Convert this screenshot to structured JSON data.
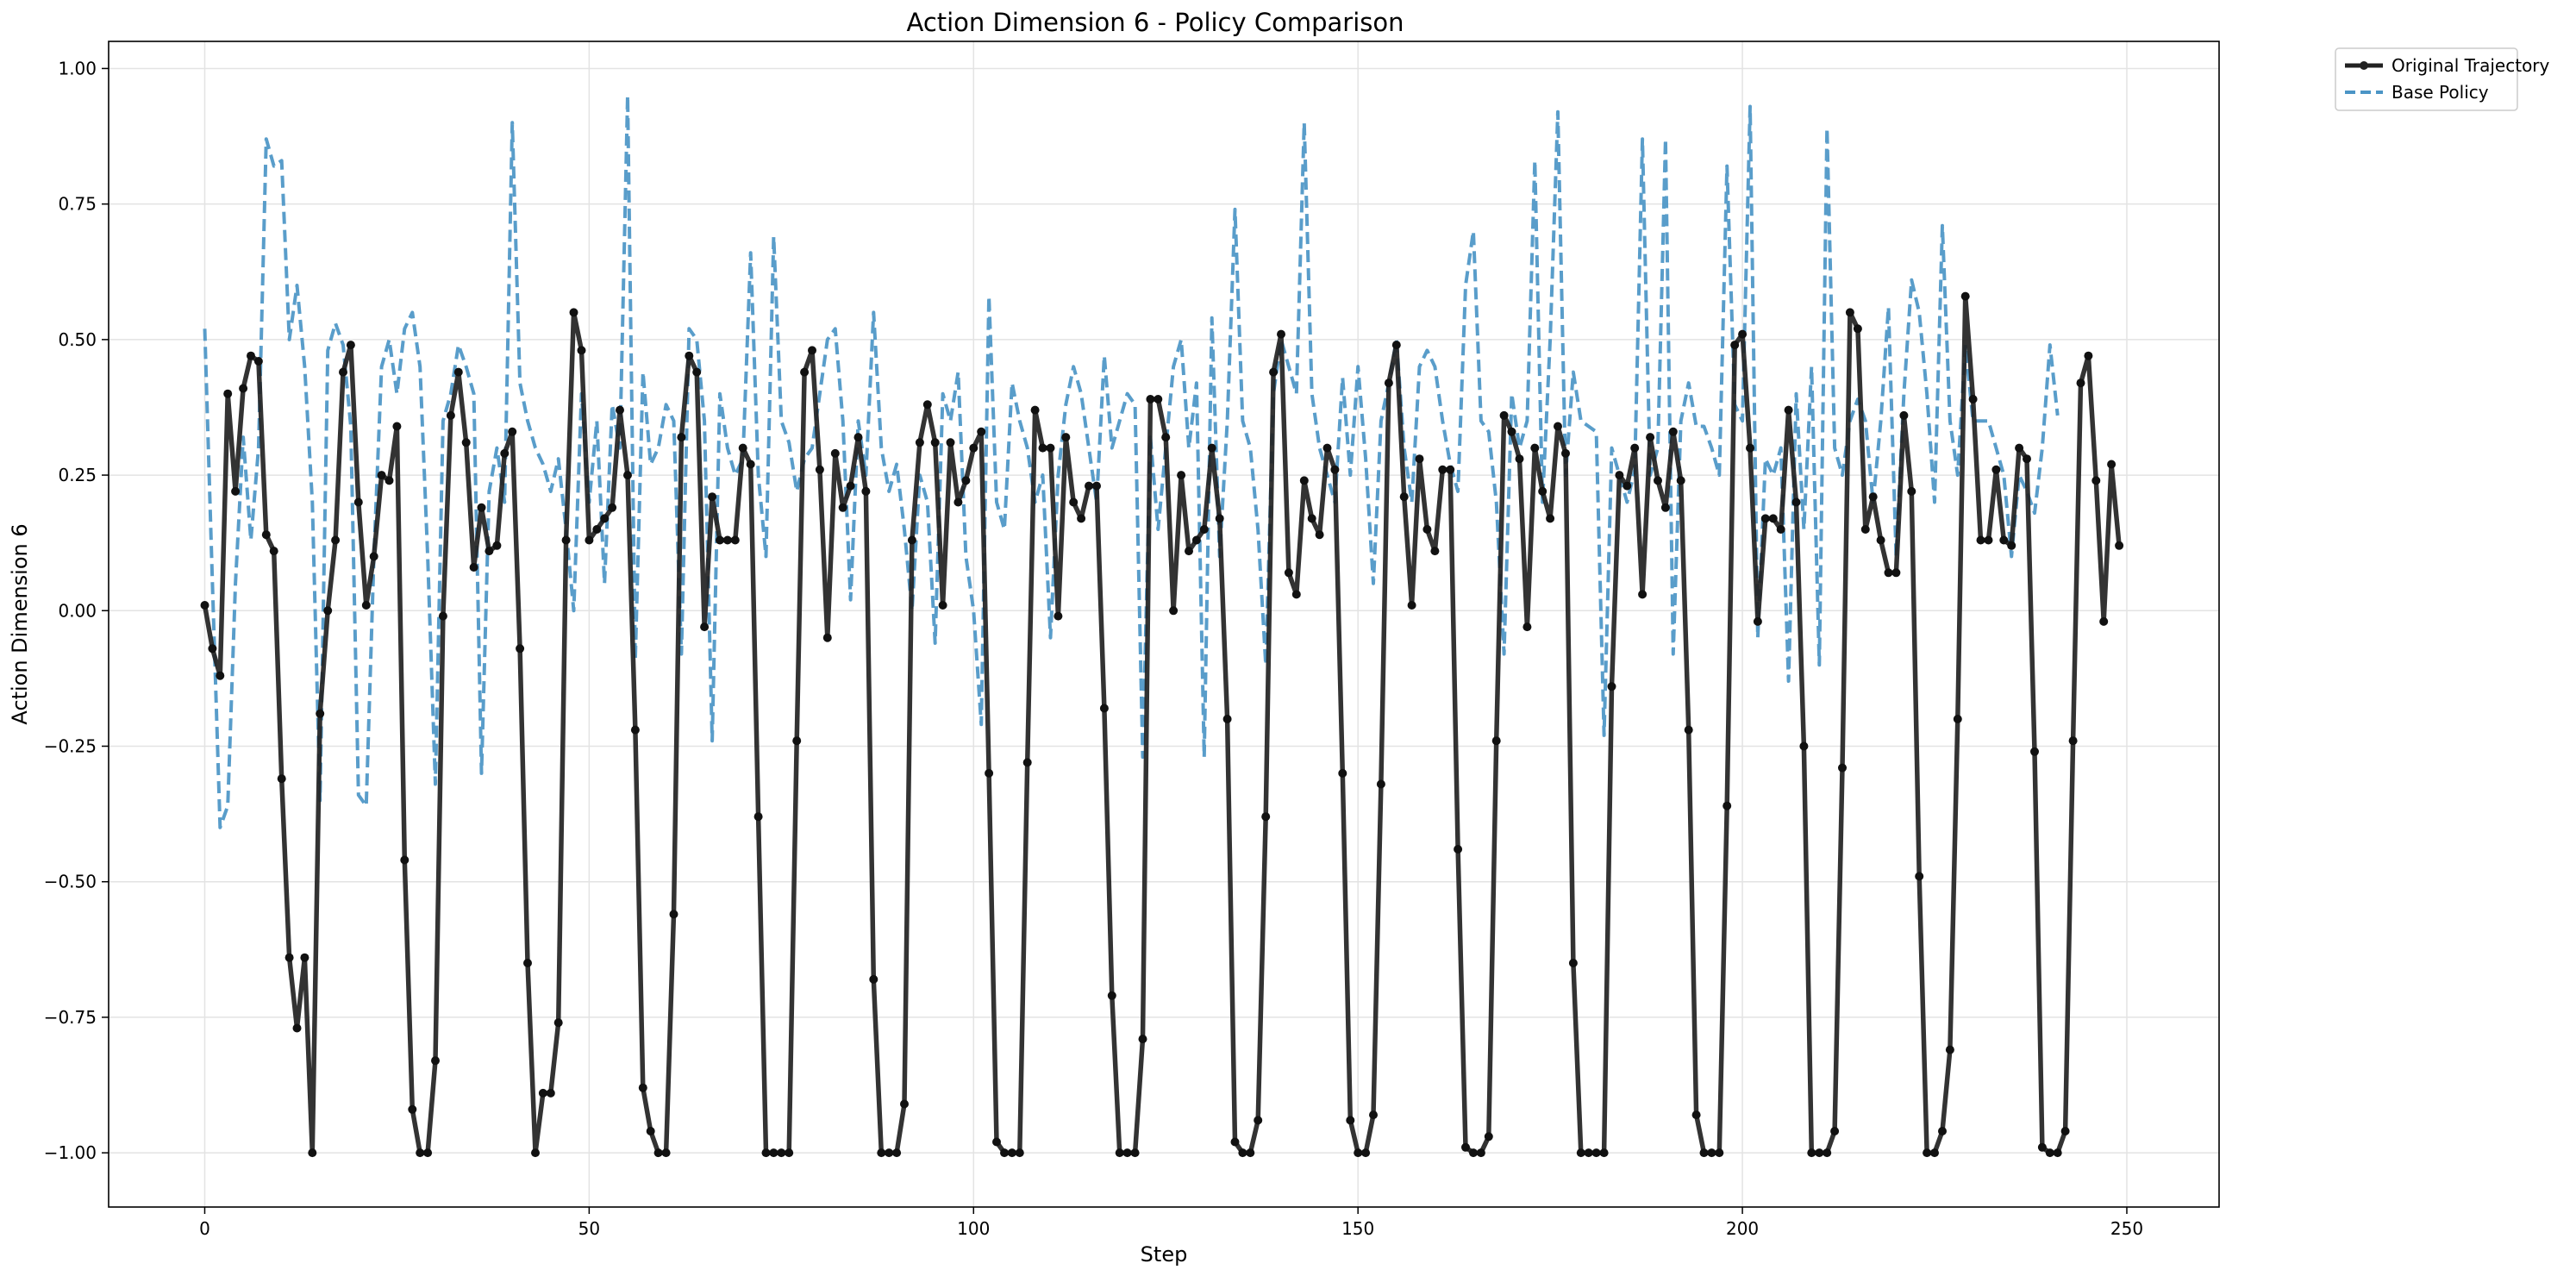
{
  "chart_data": {
    "type": "line",
    "title": "Action Dimension 6 - Policy Comparison",
    "xlabel": "Step",
    "ylabel": "Action Dimension 6",
    "xlim": [
      -12.5,
      262
    ],
    "ylim": [
      -1.1,
      1.05
    ],
    "xticks": [
      0,
      50,
      100,
      150,
      200,
      250
    ],
    "yticks": [
      -1.0,
      -0.75,
      -0.5,
      -0.25,
      0.0,
      0.25,
      0.5,
      0.75,
      1.0
    ],
    "ytick_labels": [
      "−1.00",
      "−0.75",
      "−0.50",
      "−0.25",
      "0.00",
      "0.25",
      "0.50",
      "0.75",
      "1.00"
    ],
    "grid": true,
    "legend_position": "outside-top-right",
    "series": [
      {
        "name": "Original Trajectory",
        "color": "#222222",
        "style": "solid-markers",
        "values": [
          0.01,
          -0.07,
          -0.12,
          0.4,
          0.22,
          0.41,
          0.47,
          0.46,
          0.14,
          0.11,
          -0.31,
          -0.64,
          -0.77,
          -0.64,
          -1.0,
          -0.19,
          0.0,
          0.13,
          0.44,
          0.49,
          0.2,
          0.01,
          0.1,
          0.25,
          0.24,
          0.34,
          -0.46,
          -0.92,
          -1.0,
          -1.0,
          -0.83,
          -0.01,
          0.36,
          0.44,
          0.31,
          0.08,
          0.19,
          0.11,
          0.12,
          0.29,
          0.33,
          -0.07,
          -0.65,
          -1.0,
          -0.89,
          -0.89,
          -0.76,
          0.13,
          0.55,
          0.48,
          0.13,
          0.15,
          0.17,
          0.19,
          0.37,
          0.25,
          -0.22,
          -0.88,
          -0.96,
          -1.0,
          -1.0,
          -0.56,
          0.32,
          0.47,
          0.44,
          -0.03,
          0.21,
          0.13,
          0.13,
          0.13,
          0.3,
          0.27,
          -0.38,
          -1.0,
          -1.0,
          -1.0,
          -1.0,
          -0.24,
          0.44,
          0.48,
          0.26,
          -0.05,
          0.29,
          0.19,
          0.23,
          0.32,
          0.22,
          -0.68,
          -1.0,
          -1.0,
          -1.0,
          -0.91,
          0.13,
          0.31,
          0.38,
          0.31,
          0.01,
          0.31,
          0.2,
          0.24,
          0.3,
          0.33,
          -0.3,
          -0.98,
          -1.0,
          -1.0,
          -1.0,
          -0.28,
          0.37,
          0.3,
          0.3,
          -0.01,
          0.32,
          0.2,
          0.17,
          0.23,
          0.23,
          -0.18,
          -0.71,
          -1.0,
          -1.0,
          -1.0,
          -0.79,
          0.39,
          0.39,
          0.32,
          0.0,
          0.25,
          0.11,
          0.13,
          0.15,
          0.3,
          0.17,
          -0.2,
          -0.98,
          -1.0,
          -1.0,
          -0.94,
          -0.38,
          0.44,
          0.51,
          0.07,
          0.03,
          0.24,
          0.17,
          0.14,
          0.3,
          0.26,
          -0.3,
          -0.94,
          -1.0,
          -1.0,
          -0.93,
          -0.32,
          0.42,
          0.49,
          0.21,
          0.01,
          0.28,
          0.15,
          0.11,
          0.26,
          0.26,
          -0.44,
          -0.99,
          -1.0,
          -1.0,
          -0.97,
          -0.24,
          0.36,
          0.33,
          0.28,
          -0.03,
          0.3,
          0.22,
          0.17,
          0.34,
          0.29,
          -0.65,
          -1.0,
          -1.0,
          -1.0,
          -1.0,
          -0.14,
          0.25,
          0.23,
          0.3,
          0.03,
          0.32,
          0.24,
          0.19,
          0.33,
          0.24,
          -0.22,
          -0.93,
          -1.0,
          -1.0,
          -1.0,
          -0.36,
          0.49,
          0.51,
          0.3,
          -0.02,
          0.17,
          0.17,
          0.15,
          0.37,
          0.2,
          -0.25,
          -1.0,
          -1.0,
          -1.0,
          -0.96,
          -0.29,
          0.55,
          0.52,
          0.15,
          0.21,
          0.13,
          0.07,
          0.07,
          0.36,
          0.22,
          -0.49,
          -1.0,
          -1.0,
          -0.96,
          -0.81,
          -0.2,
          0.58,
          0.39,
          0.13,
          0.13,
          0.26,
          0.13,
          0.12,
          0.3,
          0.28,
          -0.26,
          -0.99,
          -1.0,
          -1.0,
          -0.96,
          -0.24,
          0.42,
          0.47,
          0.24,
          -0.02,
          0.27,
          0.12
        ]
      },
      {
        "name": "Base Policy",
        "color": "#4b95c6",
        "style": "dashed",
        "values": [
          0.52,
          0.05,
          -0.4,
          -0.36,
          0.05,
          0.32,
          0.13,
          0.3,
          0.87,
          0.82,
          0.83,
          0.5,
          0.6,
          0.45,
          0.2,
          -0.35,
          0.48,
          0.53,
          0.49,
          0.34,
          -0.34,
          -0.36,
          0.1,
          0.45,
          0.5,
          0.4,
          0.52,
          0.55,
          0.45,
          0.1,
          -0.32,
          0.35,
          0.4,
          0.49,
          0.45,
          0.4,
          -0.3,
          0.22,
          0.3,
          0.2,
          0.9,
          0.42,
          0.35,
          0.3,
          0.27,
          0.22,
          0.28,
          0.15,
          0.0,
          0.4,
          0.2,
          0.35,
          0.05,
          0.38,
          0.3,
          0.95,
          -0.09,
          0.44,
          0.27,
          0.3,
          0.38,
          0.35,
          -0.08,
          0.52,
          0.5,
          0.35,
          -0.24,
          0.4,
          0.3,
          0.25,
          0.28,
          0.66,
          0.25,
          0.1,
          0.69,
          0.35,
          0.31,
          0.22,
          0.28,
          0.3,
          0.4,
          0.5,
          0.52,
          0.35,
          0.02,
          0.35,
          0.25,
          0.55,
          0.3,
          0.22,
          0.27,
          0.15,
          0.0,
          0.25,
          0.2,
          -0.06,
          0.4,
          0.35,
          0.44,
          0.1,
          0.0,
          -0.21,
          0.58,
          0.2,
          0.15,
          0.42,
          0.35,
          0.3,
          0.2,
          0.25,
          -0.05,
          0.25,
          0.38,
          0.45,
          0.4,
          0.3,
          0.2,
          0.47,
          0.3,
          0.35,
          0.4,
          0.38,
          -0.27,
          0.32,
          0.15,
          0.3,
          0.45,
          0.5,
          0.3,
          0.42,
          -0.27,
          0.54,
          0.1,
          0.35,
          0.74,
          0.35,
          0.3,
          0.15,
          -0.1,
          0.4,
          0.5,
          0.45,
          0.4,
          0.9,
          0.4,
          0.3,
          0.25,
          0.2,
          0.43,
          0.25,
          0.45,
          0.28,
          0.05,
          0.35,
          0.42,
          0.5,
          0.3,
          0.2,
          0.45,
          0.48,
          0.45,
          0.35,
          0.27,
          0.22,
          0.6,
          0.7,
          0.35,
          0.33,
          0.2,
          -0.08,
          0.4,
          0.3,
          0.35,
          0.83,
          0.2,
          0.5,
          0.92,
          0.25,
          0.44,
          0.35,
          0.34,
          0.33,
          -0.23,
          0.3,
          0.25,
          0.2,
          0.26,
          0.87,
          0.25,
          0.3,
          0.87,
          -0.08,
          0.35,
          0.42,
          0.34,
          0.34,
          0.3,
          0.25,
          0.82,
          0.38,
          0.35,
          0.93,
          -0.05,
          0.28,
          0.25,
          0.3,
          -0.13,
          0.4,
          0.15,
          0.45,
          -0.1,
          0.89,
          0.3,
          0.25,
          0.35,
          0.39,
          0.35,
          0.2,
          0.35,
          0.56,
          0.1,
          0.4,
          0.61,
          0.55,
          0.4,
          0.2,
          0.71,
          0.35,
          0.25,
          0.49,
          0.35,
          0.35,
          0.35,
          0.3,
          0.25,
          0.1,
          0.25,
          0.22,
          0.18,
          0.3,
          0.49,
          0.36
        ]
      }
    ]
  }
}
